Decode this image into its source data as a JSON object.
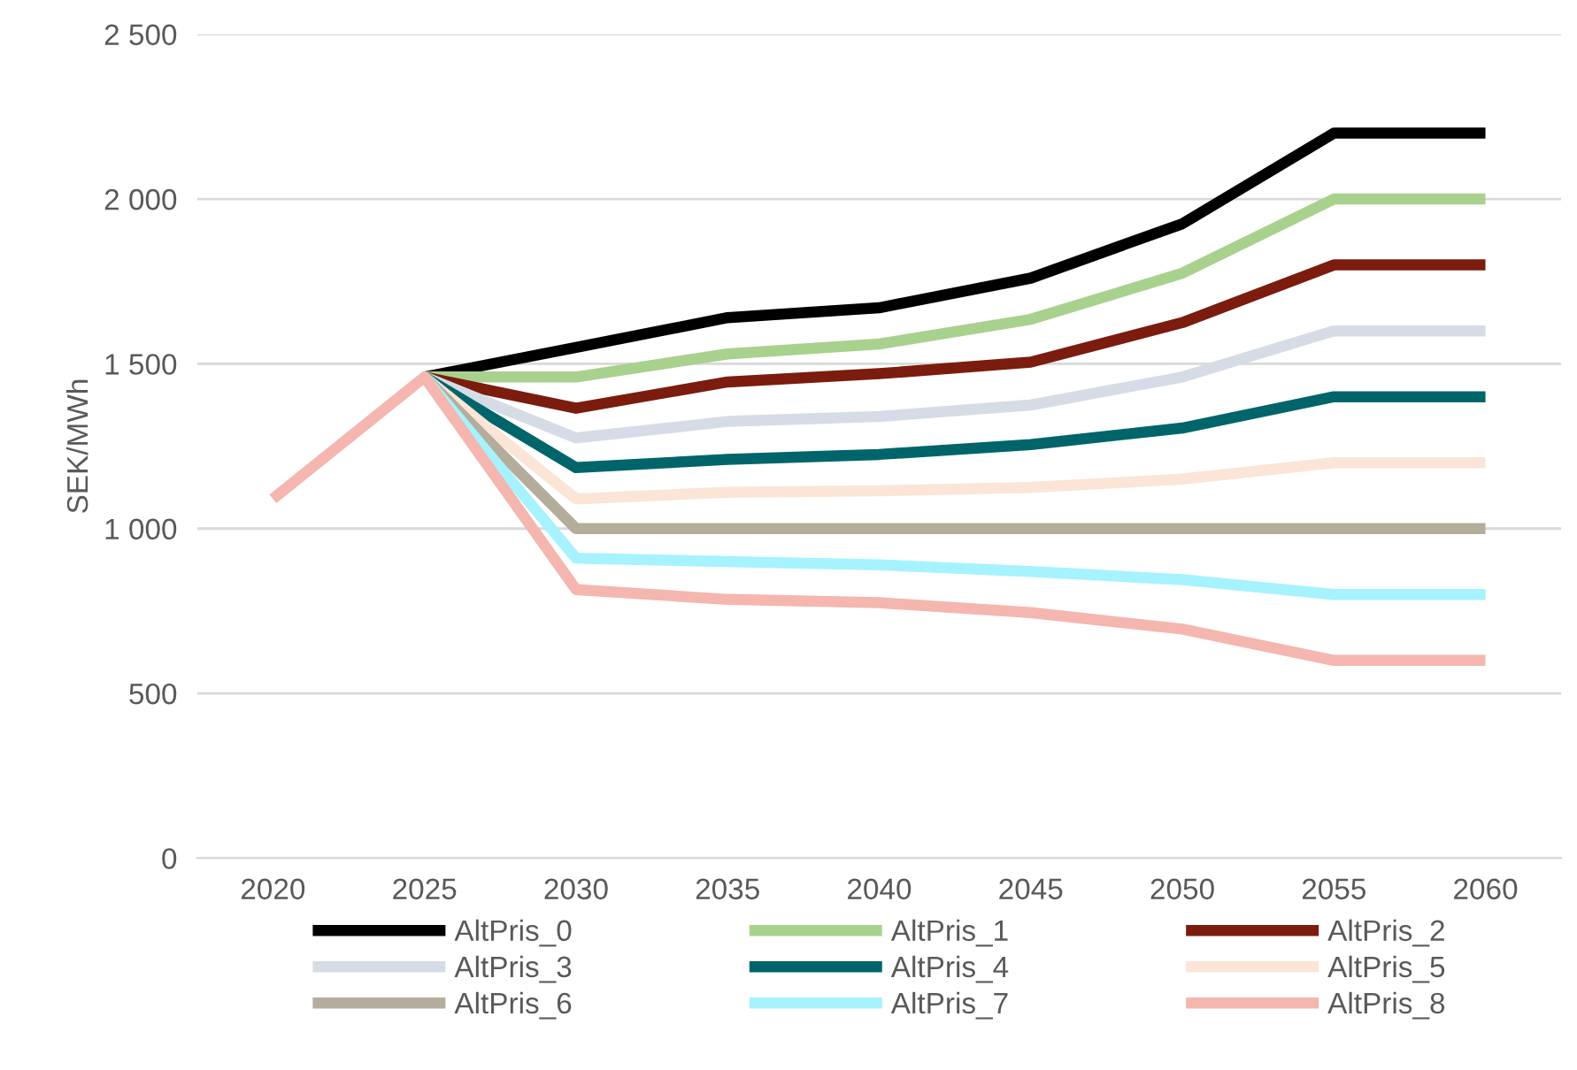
{
  "chart_data": {
    "type": "line",
    "ylabel": "SEK/MWh",
    "categories": [
      "2020",
      "2025",
      "2030",
      "2035",
      "2040",
      "2045",
      "2050",
      "2055",
      "2060"
    ],
    "ylim": [
      0,
      2500
    ],
    "yticks": [
      0,
      {
        "value": 500,
        "label": "500"
      },
      {
        "value": 1000,
        "label": "1 000"
      },
      {
        "value": 1500,
        "label": "1 500"
      },
      {
        "value": 2000,
        "label": "2 000"
      },
      {
        "value": 2500,
        "label": "2 500"
      }
    ],
    "grid": "y",
    "legend": "bottom",
    "marker": "none",
    "line_style": "solid",
    "series": [
      {
        "name": "AltPris_0",
        "color": "#000000",
        "values": [
          null,
          1460,
          1550,
          1640,
          1670,
          1760,
          1925,
          2200,
          2200
        ]
      },
      {
        "name": "AltPris_1",
        "color": "#a9d18e",
        "values": [
          null,
          1460,
          1460,
          1530,
          1560,
          1635,
          1775,
          2000,
          2000
        ]
      },
      {
        "name": "AltPris_2",
        "color": "#7b1c0e",
        "values": [
          null,
          1460,
          1365,
          1445,
          1470,
          1505,
          1625,
          1800,
          1800
        ]
      },
      {
        "name": "AltPris_3",
        "color": "#d6dce5",
        "values": [
          null,
          1460,
          1275,
          1325,
          1340,
          1375,
          1460,
          1600,
          1600
        ]
      },
      {
        "name": "AltPris_4",
        "color": "#00656b",
        "values": [
          null,
          1460,
          1185,
          1210,
          1225,
          1255,
          1305,
          1400,
          1400
        ]
      },
      {
        "name": "AltPris_5",
        "color": "#fbe5d6",
        "values": [
          null,
          1460,
          1090,
          1110,
          1115,
          1125,
          1150,
          1200,
          1200
        ]
      },
      {
        "name": "AltPris_6",
        "color": "#b4ad9b",
        "values": [
          null,
          1460,
          1000,
          1000,
          1000,
          1000,
          1000,
          1000,
          1000
        ]
      },
      {
        "name": "AltPris_7",
        "color": "#a6f2ff",
        "values": [
          null,
          1460,
          910,
          900,
          890,
          870,
          845,
          800,
          800
        ]
      },
      {
        "name": "AltPris_8",
        "color": "#f4b6ae",
        "values": [
          1090,
          1460,
          815,
          785,
          775,
          745,
          695,
          600,
          600
        ]
      }
    ]
  }
}
